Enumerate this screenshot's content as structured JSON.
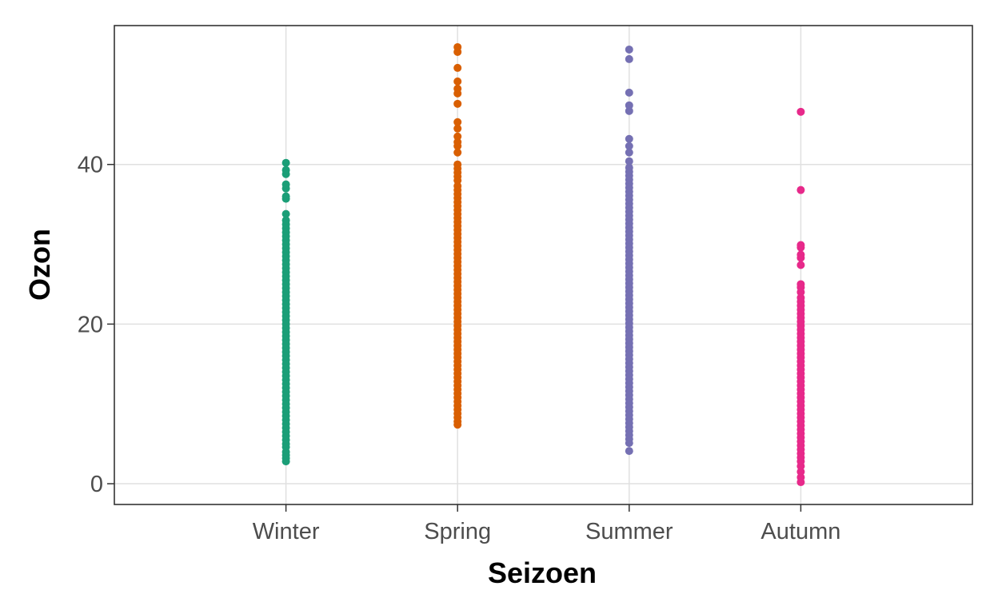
{
  "chart_data": {
    "type": "scatter",
    "xlabel": "Seizoen",
    "ylabel": "Ozon",
    "categories": [
      "Winter",
      "Spring",
      "Summer",
      "Autumn"
    ],
    "ylim": [
      -2.6,
      57.4
    ],
    "yticks": [
      0,
      20,
      40
    ],
    "grid": true,
    "legend": "none",
    "colors": [
      "#1b9e77",
      "#d95f02",
      "#7570b3",
      "#e7298a"
    ],
    "series": [
      {
        "values": [
          2.8,
          3.2,
          3.6,
          4.0,
          4.6,
          5.0,
          5.5,
          6.0,
          6.5,
          7.0,
          7.5,
          8.0,
          8.5,
          9.0,
          9.5,
          10.0,
          10.5,
          11.0,
          11.5,
          12.0,
          12.5,
          13.0,
          13.5,
          14.0,
          14.5,
          15.0,
          15.5,
          16.0,
          16.5,
          17.0,
          17.5,
          18.0,
          18.5,
          19.0,
          19.5,
          20.0,
          20.5,
          21.0,
          21.5,
          22.0,
          22.5,
          23.0,
          23.5,
          24.0,
          24.5,
          25.0,
          25.5,
          26.0,
          26.5,
          27.0,
          27.5,
          28.0,
          28.5,
          29.0,
          29.5,
          30.0,
          30.5,
          31.0,
          31.5,
          32.0,
          32.5,
          33.0,
          33.8,
          35.7,
          36.0,
          37.0,
          37.5,
          38.8,
          39.3,
          40.2
        ]
      },
      {
        "values": [
          7.4,
          7.8,
          8.3,
          8.8,
          9.3,
          9.8,
          10.3,
          10.8,
          11.3,
          11.8,
          12.3,
          12.8,
          13.3,
          13.8,
          14.3,
          14.8,
          15.3,
          15.8,
          16.3,
          16.8,
          17.3,
          17.8,
          18.3,
          18.8,
          19.3,
          19.8,
          20.3,
          20.8,
          21.3,
          21.8,
          22.3,
          22.8,
          23.3,
          23.8,
          24.3,
          24.8,
          25.3,
          25.8,
          26.3,
          26.8,
          27.3,
          27.8,
          28.3,
          28.8,
          29.3,
          29.8,
          30.3,
          30.8,
          31.3,
          31.8,
          32.3,
          32.8,
          33.3,
          33.8,
          34.3,
          34.8,
          35.3,
          35.8,
          36.3,
          36.8,
          37.3,
          38.0,
          38.5,
          39.0,
          39.5,
          40.0,
          41.5,
          42.3,
          42.8,
          43.5,
          44.5,
          45.3,
          47.6,
          48.9,
          49.5,
          50.4,
          52.1,
          54.1,
          54.7
        ]
      },
      {
        "values": [
          4.1,
          5.1,
          5.6,
          6.1,
          6.6,
          7.1,
          7.6,
          8.1,
          8.6,
          9.1,
          9.6,
          10.1,
          10.6,
          11.1,
          11.6,
          12.1,
          12.6,
          13.1,
          13.6,
          14.1,
          14.6,
          15.1,
          15.6,
          16.1,
          16.6,
          17.1,
          17.6,
          18.1,
          18.6,
          19.1,
          19.6,
          20.1,
          20.6,
          21.1,
          21.6,
          22.1,
          22.6,
          23.1,
          23.6,
          24.1,
          24.6,
          25.1,
          25.6,
          26.1,
          26.6,
          27.1,
          27.6,
          28.1,
          28.6,
          29.1,
          29.6,
          30.1,
          30.6,
          31.1,
          31.6,
          32.1,
          32.6,
          33.1,
          33.6,
          34.1,
          34.6,
          35.1,
          35.6,
          36.1,
          36.6,
          37.1,
          37.6,
          38.1,
          38.6,
          39.1,
          39.6,
          40.4,
          41.5,
          42.3,
          43.2,
          46.7,
          47.4,
          49.0,
          53.2,
          54.4
        ]
      },
      {
        "values": [
          0.2,
          0.8,
          1.5,
          2.2,
          2.8,
          3.3,
          3.8,
          4.3,
          4.8,
          5.3,
          5.8,
          6.3,
          6.8,
          7.3,
          7.8,
          8.3,
          8.8,
          9.3,
          9.8,
          10.3,
          10.8,
          11.3,
          11.8,
          12.3,
          12.8,
          13.3,
          13.8,
          14.3,
          14.8,
          15.3,
          15.8,
          16.3,
          16.8,
          17.3,
          17.8,
          18.3,
          18.8,
          19.3,
          19.8,
          20.3,
          20.8,
          21.3,
          21.8,
          22.3,
          22.8,
          23.3,
          24.0,
          24.6,
          25.0,
          27.4,
          28.3,
          28.7,
          29.6,
          29.9,
          36.8,
          46.6
        ]
      }
    ]
  }
}
